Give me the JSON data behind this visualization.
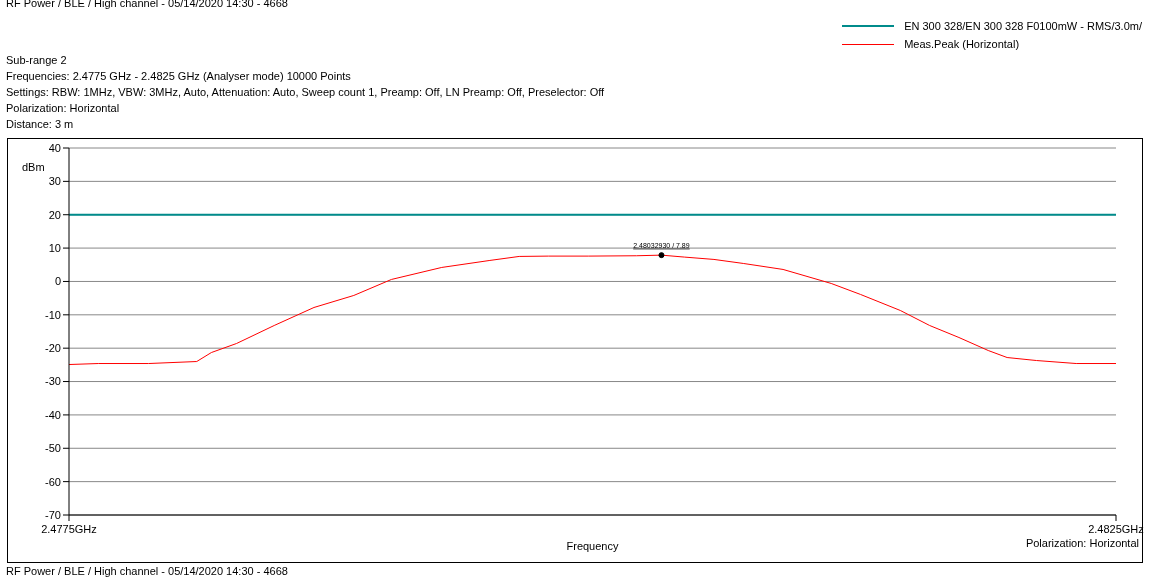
{
  "chart_data": {
    "type": "line",
    "title": "RF Power / BLE / High channel  -  05/14/2020 14:30  -  4668",
    "subtitle": "Sub-range 2\nFrequencies: 2.4775 GHz - 2.4825 GHz (Analyser mode) 10000 Points\nSettings: RBW: 1MHz, VBW: 3MHz, Auto, Attenuation: Auto, Sweep count 1, Preamp: Off, LN Preamp: Off, Preselector: Off\nPolarization: Horizontal\nDistance: 3 m",
    "xlabel": "Frequency",
    "ylabel": "dBm",
    "series": [
      {
        "name": "EN 300 328/EN 300 328 F0100mW - RMS/3.0m/",
        "color": "#008b8b",
        "x": [
          2.4775,
          2.4825
        ],
        "values": [
          20,
          20
        ]
      },
      {
        "name": "Meas.Peak (Horizontal)",
        "color": "#ff0000",
        "x": [
          2.4775,
          2.47764,
          2.47788,
          2.47811,
          2.47818,
          2.4783,
          2.47848,
          2.47867,
          2.47886,
          2.47904,
          2.47928,
          2.47951,
          2.47965,
          2.47979,
          2.47998,
          2.48021,
          2.4803293,
          2.48044,
          2.48058,
          2.48072,
          2.48091,
          2.48114,
          2.48128,
          2.48147,
          2.48161,
          2.48175,
          2.48189,
          2.48198,
          2.48212,
          2.48231,
          2.4825
        ],
        "values": [
          -24.9,
          -24.6,
          -24.6,
          -24,
          -21.3,
          -18.6,
          -13.2,
          -7.8,
          -4.2,
          0.6,
          4.2,
          6.3,
          7.5,
          7.6,
          7.6,
          7.7,
          7.89,
          7.3,
          6.6,
          5.4,
          3.6,
          -0.6,
          -3.9,
          -8.7,
          -13.2,
          -16.8,
          -20.7,
          -22.8,
          -23.7,
          -24.6,
          -24.6
        ]
      }
    ],
    "xlim": [
      2.4775,
      2.4825
    ],
    "xticks": [
      {
        "value": 2.4775,
        "label": "2.4775GHz"
      },
      {
        "value": 2.4825,
        "label": "2.4825GHz"
      }
    ],
    "ylim": [
      -70,
      40
    ],
    "yticks": [
      -70,
      -60,
      -50,
      -40,
      -30,
      -20,
      -10,
      0,
      10,
      20,
      30,
      40
    ],
    "grid": "y",
    "legend": "top right",
    "marker": "none",
    "line_style": "solid",
    "annotations": [
      {
        "text": "2.48032930 / 7.89",
        "x": 2.4803293,
        "y": 7.89
      },
      "Polarization: Horizontal",
      "RF Power / BLE / High channel  -  05/14/2020 14:30  -  4668"
    ]
  }
}
